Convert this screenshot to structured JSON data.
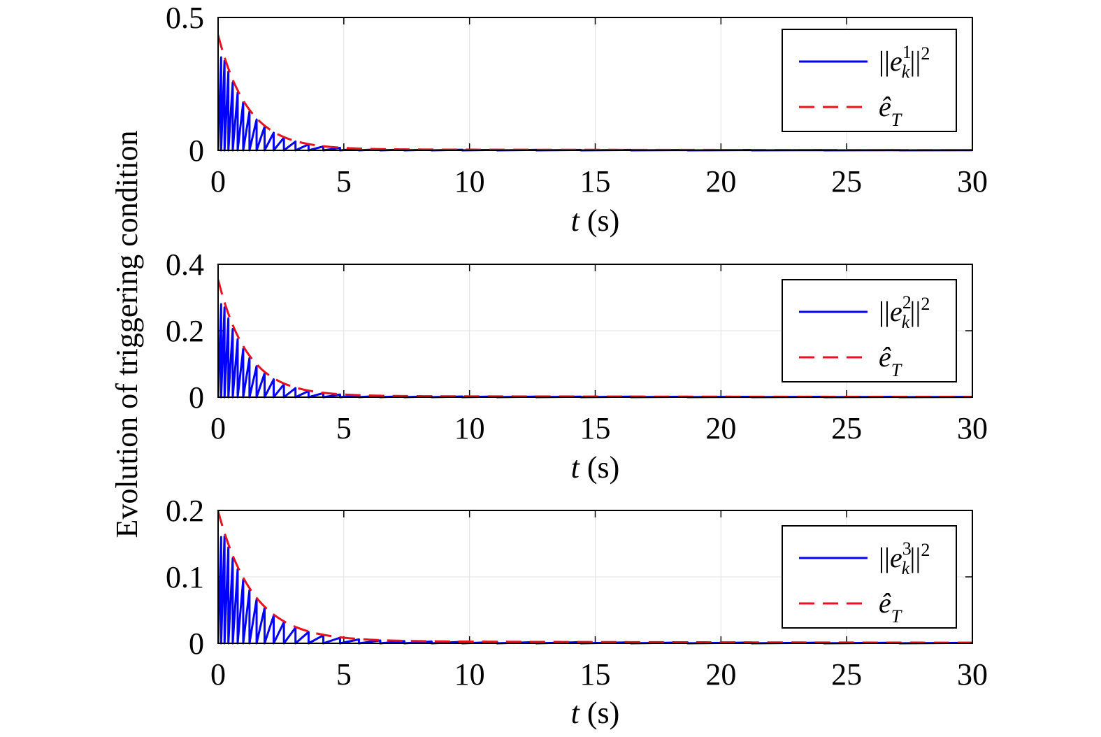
{
  "figure": {
    "ylabel": "Evolution of triggering condition"
  },
  "chart_data": [
    {
      "type": "line",
      "xlabel_var": "t",
      "xlabel_unit": " (s)",
      "xlim": [
        0,
        30
      ],
      "ylim": [
        0,
        0.5
      ],
      "xticks": [
        0,
        5,
        10,
        15,
        20,
        25,
        30
      ],
      "yticks": [
        0,
        0.5
      ],
      "ytick_labels": [
        "0",
        "0.5"
      ],
      "grid": true,
      "legend_position": "top-right",
      "series": [
        {
          "name": "||e_k^1||^2",
          "legend_base": "||e",
          "legend_sub": "k",
          "legend_sup": "1",
          "legend_tail": "||",
          "legend_tail_sup": "2",
          "style": "solid",
          "color": "#0000ff",
          "kind": "sawtooth",
          "peak": 0.35,
          "decay": 0.85
        },
        {
          "name": "ê_T",
          "legend_base": "ê",
          "legend_sub": "T",
          "style": "dashed",
          "color": "#e8111e",
          "kind": "envelope",
          "start": 0.43,
          "decay": 0.85
        }
      ]
    },
    {
      "type": "line",
      "xlabel_var": "t",
      "xlabel_unit": " (s)",
      "xlim": [
        0,
        30
      ],
      "ylim": [
        0,
        0.4
      ],
      "xticks": [
        0,
        5,
        10,
        15,
        20,
        25,
        30
      ],
      "yticks": [
        0,
        0.2,
        0.4
      ],
      "ytick_labels": [
        "0",
        "0.2",
        "0.4"
      ],
      "grid": true,
      "legend_position": "right",
      "series": [
        {
          "name": "||e_k^2||^2",
          "legend_base": "||e",
          "legend_sub": "k",
          "legend_sup": "2",
          "legend_tail": "||",
          "legend_tail_sup": "2",
          "style": "solid",
          "color": "#0000ff",
          "kind": "sawtooth",
          "peak": 0.28,
          "decay": 0.85
        },
        {
          "name": "ê_T",
          "legend_base": "ê",
          "legend_sub": "T",
          "style": "dashed",
          "color": "#e8111e",
          "kind": "envelope",
          "start": 0.35,
          "decay": 0.85
        }
      ]
    },
    {
      "type": "line",
      "xlabel_var": "t",
      "xlabel_unit": " (s)",
      "xlim": [
        0,
        30
      ],
      "ylim": [
        0,
        0.2
      ],
      "xticks": [
        0,
        5,
        10,
        15,
        20,
        25,
        30
      ],
      "yticks": [
        0,
        0.1,
        0.2
      ],
      "ytick_labels": [
        "0",
        "0.1",
        "0.2"
      ],
      "grid": true,
      "legend_position": "right",
      "series": [
        {
          "name": "||e_k^3||^2",
          "legend_base": "||e",
          "legend_sub": "k",
          "legend_sup": "3",
          "legend_tail": "||",
          "legend_tail_sup": "2",
          "style": "solid",
          "color": "#0000ff",
          "kind": "sawtooth",
          "peak": 0.16,
          "decay": 0.72
        },
        {
          "name": "ê_T",
          "legend_base": "ê",
          "legend_sub": "T",
          "style": "dashed",
          "color": "#e8111e",
          "kind": "envelope",
          "start": 0.195,
          "decay": 0.72
        }
      ]
    }
  ]
}
